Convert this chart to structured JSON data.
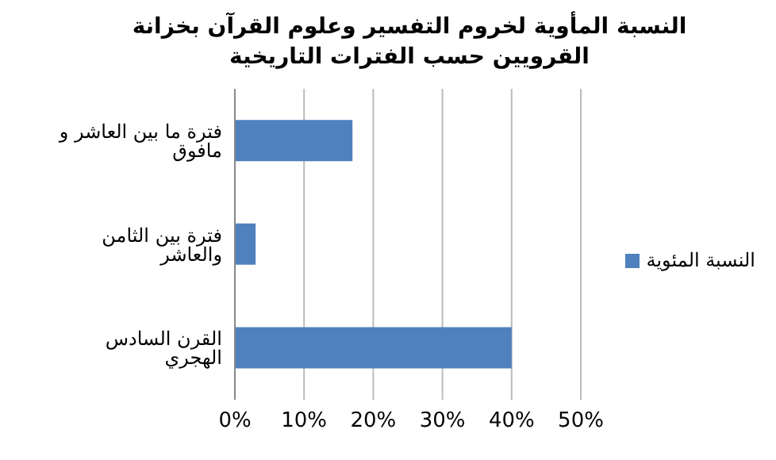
{
  "chart_data": {
    "type": "bar",
    "orientation": "horizontal",
    "title": "النسبة المأوية لخروم التفسير وعلوم القرآن بخزانة القرويين حسب الفترات التاريخية",
    "categories": [
      "فترة ما بين العاشر و مافوق",
      "فترة بين الثامن والعاشر",
      "القرن السادس الهجري"
    ],
    "series": [
      {
        "name": "النسبة المئوية",
        "color": "#4f81bd",
        "values": [
          17,
          3,
          40
        ]
      }
    ],
    "xlim": [
      0,
      50
    ],
    "xticks": [
      {
        "value": 0,
        "label": "0%"
      },
      {
        "value": 10,
        "label": "10%"
      },
      {
        "value": 20,
        "label": "20%"
      },
      {
        "value": 30,
        "label": "30%"
      },
      {
        "value": 40,
        "label": "40%"
      },
      {
        "value": 50,
        "label": "50%"
      }
    ],
    "grid": "x",
    "legend": "right"
  }
}
